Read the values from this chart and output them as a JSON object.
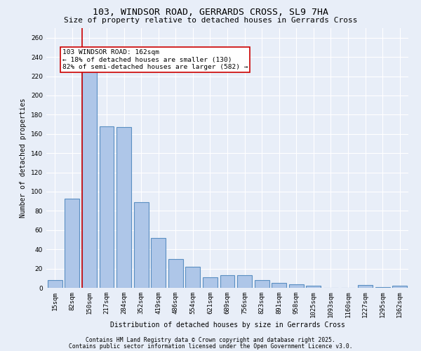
{
  "title1": "103, WINDSOR ROAD, GERRARDS CROSS, SL9 7HA",
  "title2": "Size of property relative to detached houses in Gerrards Cross",
  "xlabel": "Distribution of detached houses by size in Gerrards Cross",
  "ylabel": "Number of detached properties",
  "categories": [
    "15sqm",
    "82sqm",
    "150sqm",
    "217sqm",
    "284sqm",
    "352sqm",
    "419sqm",
    "486sqm",
    "554sqm",
    "621sqm",
    "689sqm",
    "756sqm",
    "823sqm",
    "891sqm",
    "958sqm",
    "1025sqm",
    "1093sqm",
    "1160sqm",
    "1227sqm",
    "1295sqm",
    "1362sqm"
  ],
  "values": [
    8,
    93,
    228,
    168,
    167,
    89,
    52,
    30,
    22,
    11,
    13,
    13,
    8,
    5,
    4,
    2,
    0,
    0,
    3,
    1,
    2
  ],
  "bar_color": "#aec6e8",
  "bar_edge_color": "#5a8fc2",
  "background_color": "#e8eef8",
  "grid_color": "#ffffff",
  "vline_x_index": 2,
  "vline_color": "#cc0000",
  "annotation_text": "103 WINDSOR ROAD: 162sqm\n← 18% of detached houses are smaller (130)\n82% of semi-detached houses are larger (582) →",
  "annotation_box_color": "#ffffff",
  "annotation_box_edge": "#cc0000",
  "ylim": [
    0,
    270
  ],
  "yticks": [
    0,
    20,
    40,
    60,
    80,
    100,
    120,
    140,
    160,
    180,
    200,
    220,
    240,
    260
  ],
  "footer1": "Contains HM Land Registry data © Crown copyright and database right 2025.",
  "footer2": "Contains public sector information licensed under the Open Government Licence v3.0.",
  "title_fontsize": 9.5,
  "subtitle_fontsize": 8,
  "axis_label_fontsize": 7,
  "tick_fontsize": 6.5,
  "annotation_fontsize": 6.8,
  "footer_fontsize": 5.8
}
